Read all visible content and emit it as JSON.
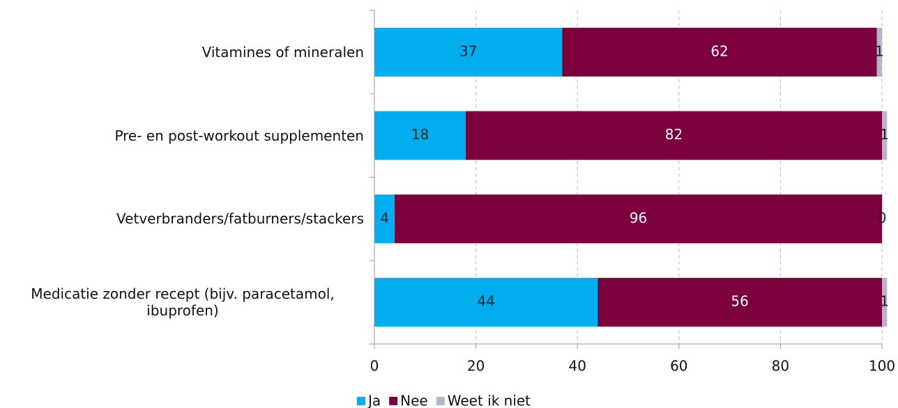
{
  "chart_data": {
    "type": "stacked-barh",
    "categories": [
      "Vitamines of mineralen",
      "Pre- en post-workout supplementen",
      "Vetverbranders/fatburners/stackers",
      "Medicatie zonder recept (bijv. paracetamol, ibuprofen)"
    ],
    "series": [
      {
        "name": "Ja",
        "color": "#00aeef",
        "values": [
          37,
          18,
          4,
          44
        ]
      },
      {
        "name": "Nee",
        "color": "#7b003b",
        "values": [
          62,
          82,
          96,
          56
        ]
      },
      {
        "name": "Weet ik niet",
        "color": "#b1b7c9",
        "values": [
          1,
          1,
          0,
          1
        ]
      }
    ],
    "xlim": [
      0,
      100
    ],
    "xticks": [
      0,
      20,
      40,
      60,
      80,
      100
    ],
    "grid": true,
    "legend": "bottom"
  }
}
